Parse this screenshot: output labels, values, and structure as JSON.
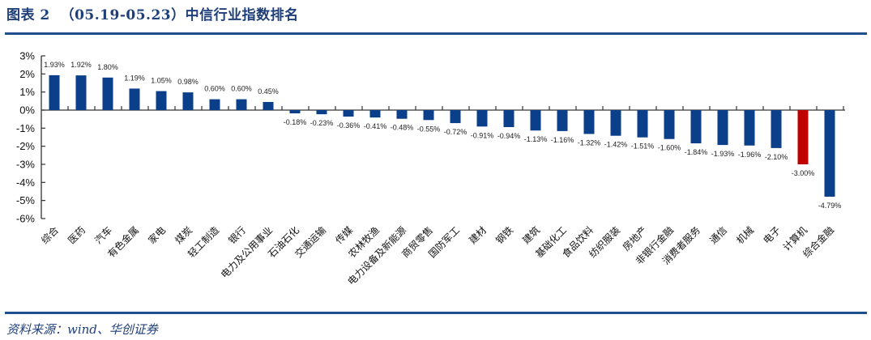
{
  "header": {
    "title": "图表 2  （05.19-05.23）中信行业指数排名"
  },
  "footer": {
    "source": "资料来源：wind、华创证券"
  },
  "colors": {
    "bar": "#0b3f8a",
    "highlight": "#c00000",
    "rule": "#1f4e8c",
    "title": "#1f3f7a"
  },
  "chart_data": {
    "type": "bar",
    "title": "（05.19-05.23）中信行业指数排名",
    "xlabel": "",
    "ylabel": "",
    "ylim": [
      -6,
      3
    ],
    "yticks": [
      "3%",
      "2%",
      "1%",
      "0%",
      "-1%",
      "-2%",
      "-3%",
      "-4%",
      "-5%",
      "-6%"
    ],
    "grid": false,
    "legend": null,
    "highlight_category": "计算机",
    "categories": [
      "综合",
      "医药",
      "汽车",
      "有色金属",
      "家电",
      "煤炭",
      "轻工制造",
      "银行",
      "电力及公用事业",
      "石油石化",
      "交通运输",
      "传媒",
      "农林牧渔",
      "电力设备及新能源",
      "商贸零售",
      "国防军工",
      "建材",
      "钢铁",
      "建筑",
      "基础化工",
      "食品饮料",
      "纺织服装",
      "房地产",
      "非银行金融",
      "消费者服务",
      "通信",
      "机械",
      "电子",
      "计算机",
      "综合金融"
    ],
    "values": [
      1.93,
      1.92,
      1.8,
      1.19,
      1.05,
      0.98,
      0.6,
      0.6,
      0.45,
      -0.18,
      -0.23,
      -0.36,
      -0.41,
      -0.48,
      -0.55,
      -0.72,
      -0.91,
      -0.94,
      -1.13,
      -1.16,
      -1.32,
      -1.42,
      -1.51,
      -1.6,
      -1.84,
      -1.93,
      -1.96,
      -2.1,
      -3.0,
      -4.79
    ],
    "data_labels": [
      "1.93%",
      "1.92%",
      "1.80%",
      "1.19%",
      "1.05%",
      "0.98%",
      "0.60%",
      "0.60%",
      "0.45%",
      "-0.18%",
      "-0.23%",
      "-0.36%",
      "-0.41%",
      "-0.48%",
      "-0.55%",
      "-0.72%",
      "-0.91%",
      "-0.94%",
      "-1.13%",
      "-1.16%",
      "-1.32%",
      "-1.42%",
      "-1.51%",
      "-1.60%",
      "-1.84%",
      "-1.93%",
      "-1.96%",
      "-2.10%",
      "-3.00%",
      "-4.79%"
    ]
  }
}
